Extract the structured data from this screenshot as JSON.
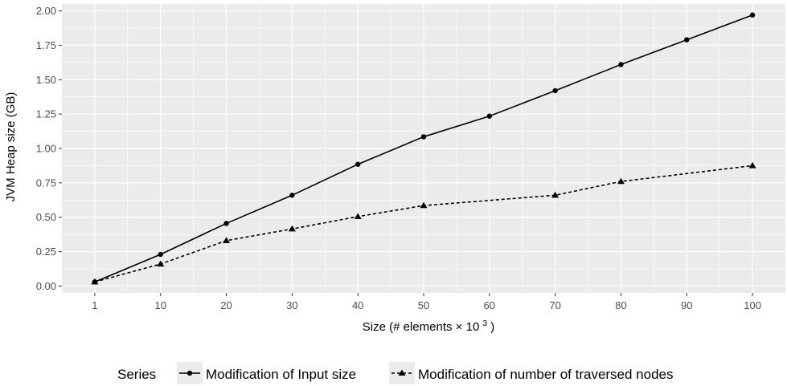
{
  "chart_data": {
    "type": "line",
    "categories": [
      "1",
      "10",
      "20",
      "30",
      "40",
      "50",
      "60",
      "70",
      "80",
      "90",
      "100"
    ],
    "series": [
      {
        "name": "Modification of Input size",
        "marker": "circle",
        "dash": "solid",
        "values": [
          0.03,
          0.23,
          0.455,
          0.66,
          0.885,
          1.085,
          1.235,
          1.42,
          1.61,
          1.79,
          1.97
        ]
      },
      {
        "name": "Modification of number of traversed nodes",
        "marker": "triangle",
        "dash": "dashed",
        "points": [
          {
            "x": "1",
            "y": 0.03
          },
          {
            "x": "10",
            "y": 0.16
          },
          {
            "x": "20",
            "y": 0.33
          },
          {
            "x": "30",
            "y": 0.415
          },
          {
            "x": "40",
            "y": 0.505
          },
          {
            "x": "50",
            "y": 0.585
          },
          {
            "x": "70",
            "y": 0.66
          },
          {
            "x": "80",
            "y": 0.76
          },
          {
            "x": "100",
            "y": 0.875
          }
        ]
      }
    ],
    "ylabel": "JVM Heap size (GB)",
    "xlabel_main": "Size (# elements",
    "xlabel_times": "×",
    "xlabel_base": "10",
    "xlabel_exp": "3",
    "xlabel_close": ")",
    "yticks": [
      "0.00",
      "0.25",
      "0.50",
      "0.75",
      "1.00",
      "1.25",
      "1.50",
      "1.75",
      "2.00"
    ],
    "ytick_values": [
      0,
      0.25,
      0.5,
      0.75,
      1.0,
      1.25,
      1.5,
      1.75,
      2.0
    ],
    "ylim": [
      -0.05,
      2.05
    ],
    "grid": true,
    "legend_title": "Series",
    "legend_position": "bottom",
    "colors": {
      "panel": "#ebebeb",
      "grid_major": "#ffffff",
      "line": "#000000"
    }
  }
}
